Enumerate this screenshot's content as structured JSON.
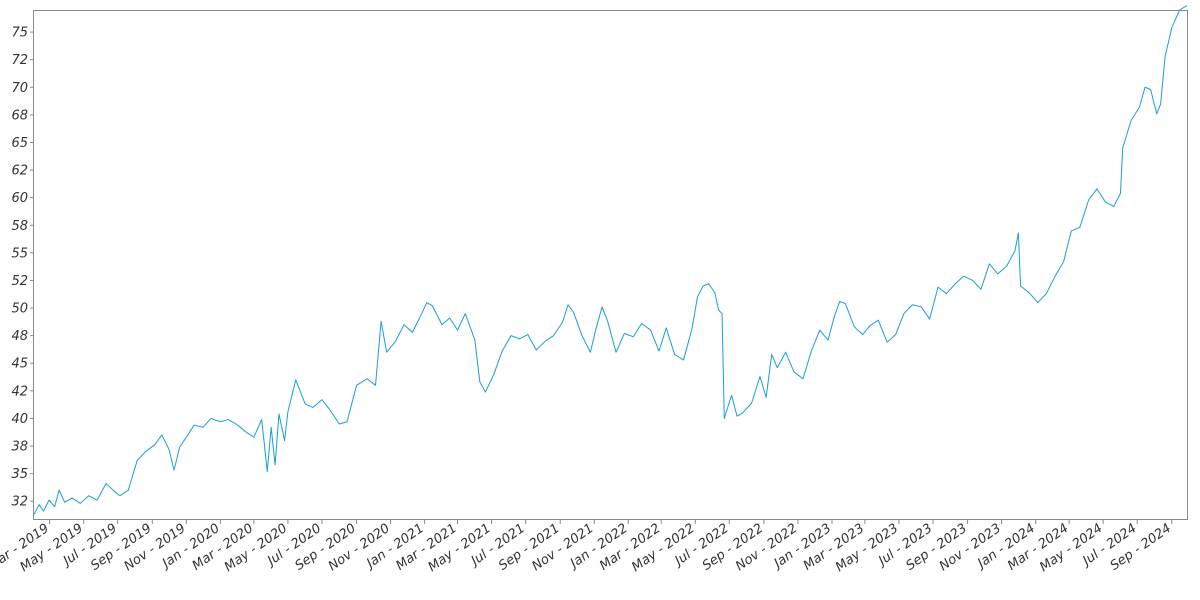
{
  "chart_data": {
    "type": "line",
    "title": "",
    "xlabel": "",
    "ylabel": "",
    "grid": false,
    "legend": "none",
    "xlim": [
      "2019-02-01",
      "2024-09-30"
    ],
    "ylim": [
      30.8,
      77.0
    ],
    "x_ticks": [
      {
        "date": "2019-03-01",
        "label": "Mar - 2019"
      },
      {
        "date": "2019-05-01",
        "label": "May - 2019"
      },
      {
        "date": "2019-07-01",
        "label": "Jul - 2019"
      },
      {
        "date": "2019-09-01",
        "label": "Sep - 2019"
      },
      {
        "date": "2019-11-01",
        "label": "Nov - 2019"
      },
      {
        "date": "2020-01-01",
        "label": "Jan - 2020"
      },
      {
        "date": "2020-03-01",
        "label": "Mar - 2020"
      },
      {
        "date": "2020-05-01",
        "label": "May - 2020"
      },
      {
        "date": "2020-07-01",
        "label": "Jul - 2020"
      },
      {
        "date": "2020-09-01",
        "label": "Sep - 2020"
      },
      {
        "date": "2020-11-01",
        "label": "Nov - 2020"
      },
      {
        "date": "2021-01-01",
        "label": "Jan - 2021"
      },
      {
        "date": "2021-03-01",
        "label": "Mar - 2021"
      },
      {
        "date": "2021-05-01",
        "label": "May - 2021"
      },
      {
        "date": "2021-07-01",
        "label": "Jul - 2021"
      },
      {
        "date": "2021-09-01",
        "label": "Sep - 2021"
      },
      {
        "date": "2021-11-01",
        "label": "Nov - 2021"
      },
      {
        "date": "2022-01-01",
        "label": "Jan - 2022"
      },
      {
        "date": "2022-03-01",
        "label": "Mar - 2022"
      },
      {
        "date": "2022-05-01",
        "label": "May - 2022"
      },
      {
        "date": "2022-07-01",
        "label": "Jul - 2022"
      },
      {
        "date": "2022-09-01",
        "label": "Sep - 2022"
      },
      {
        "date": "2022-11-01",
        "label": "Nov - 2022"
      },
      {
        "date": "2023-01-01",
        "label": "Jan - 2023"
      },
      {
        "date": "2023-03-01",
        "label": "Mar - 2023"
      },
      {
        "date": "2023-05-01",
        "label": "May - 2023"
      },
      {
        "date": "2023-07-01",
        "label": "Jul - 2023"
      },
      {
        "date": "2023-09-01",
        "label": "Sep - 2023"
      },
      {
        "date": "2023-11-01",
        "label": "Nov - 2023"
      },
      {
        "date": "2024-01-01",
        "label": "Jan - 2024"
      },
      {
        "date": "2024-03-01",
        "label": "Mar - 2024"
      },
      {
        "date": "2024-05-01",
        "label": "May - 2024"
      },
      {
        "date": "2024-07-01",
        "label": "Jul - 2024"
      },
      {
        "date": "2024-09-01",
        "label": "Sep - 2024"
      }
    ],
    "y_ticks": [
      {
        "value": 32.5,
        "label": "32"
      },
      {
        "value": 35.0,
        "label": "35"
      },
      {
        "value": 37.5,
        "label": "38"
      },
      {
        "value": 40.0,
        "label": "40"
      },
      {
        "value": 42.5,
        "label": "42"
      },
      {
        "value": 45.0,
        "label": "45"
      },
      {
        "value": 47.5,
        "label": "48"
      },
      {
        "value": 50.0,
        "label": "50"
      },
      {
        "value": 52.5,
        "label": "52"
      },
      {
        "value": 55.0,
        "label": "55"
      },
      {
        "value": 57.5,
        "label": "58"
      },
      {
        "value": 60.0,
        "label": "60"
      },
      {
        "value": 62.5,
        "label": "62"
      },
      {
        "value": 65.0,
        "label": "65"
      },
      {
        "value": 67.5,
        "label": "68"
      },
      {
        "value": 70.0,
        "label": "70"
      },
      {
        "value": 72.5,
        "label": "72"
      },
      {
        "value": 75.0,
        "label": "75"
      }
    ],
    "series": [
      {
        "color": "#1a9ed6",
        "points": [
          [
            "2019-02-01",
            31.3
          ],
          [
            "2019-02-10",
            32.2
          ],
          [
            "2019-02-18",
            31.6
          ],
          [
            "2019-02-28",
            32.6
          ],
          [
            "2019-03-10",
            32.0
          ],
          [
            "2019-03-18",
            33.5
          ],
          [
            "2019-03-28",
            32.4
          ],
          [
            "2019-04-10",
            32.8
          ],
          [
            "2019-04-25",
            32.3
          ],
          [
            "2019-05-10",
            33.0
          ],
          [
            "2019-05-25",
            32.6
          ],
          [
            "2019-06-10",
            34.1
          ],
          [
            "2019-06-25",
            33.4
          ],
          [
            "2019-07-05",
            33.0
          ],
          [
            "2019-07-20",
            33.5
          ],
          [
            "2019-08-05",
            36.2
          ],
          [
            "2019-08-20",
            37.0
          ],
          [
            "2019-09-05",
            37.6
          ],
          [
            "2019-09-18",
            38.5
          ],
          [
            "2019-10-01",
            37.2
          ],
          [
            "2019-10-10",
            35.3
          ],
          [
            "2019-10-20",
            37.4
          ],
          [
            "2019-11-01",
            38.3
          ],
          [
            "2019-11-15",
            39.4
          ],
          [
            "2019-12-01",
            39.2
          ],
          [
            "2019-12-15",
            40.0
          ],
          [
            "2020-01-01",
            39.7
          ],
          [
            "2020-01-15",
            39.9
          ],
          [
            "2020-02-01",
            39.4
          ],
          [
            "2020-02-15",
            38.8
          ],
          [
            "2020-03-01",
            38.3
          ],
          [
            "2020-03-15",
            39.9
          ],
          [
            "2020-03-25",
            35.2
          ],
          [
            "2020-04-01",
            39.2
          ],
          [
            "2020-04-08",
            35.8
          ],
          [
            "2020-04-15",
            40.4
          ],
          [
            "2020-04-25",
            38.0
          ],
          [
            "2020-05-01",
            40.6
          ],
          [
            "2020-05-15",
            43.5
          ],
          [
            "2020-06-01",
            41.3
          ],
          [
            "2020-06-15",
            41.0
          ],
          [
            "2020-07-01",
            41.7
          ],
          [
            "2020-07-15",
            40.8
          ],
          [
            "2020-08-01",
            39.5
          ],
          [
            "2020-08-15",
            39.7
          ],
          [
            "2020-09-01",
            43.0
          ],
          [
            "2020-09-20",
            43.6
          ],
          [
            "2020-10-05",
            43.0
          ],
          [
            "2020-10-15",
            48.8
          ],
          [
            "2020-10-25",
            46.0
          ],
          [
            "2020-11-10",
            47.0
          ],
          [
            "2020-11-25",
            48.5
          ],
          [
            "2020-12-10",
            47.8
          ],
          [
            "2020-12-25",
            49.3
          ],
          [
            "2021-01-05",
            50.5
          ],
          [
            "2021-01-15",
            50.2
          ],
          [
            "2021-02-01",
            48.5
          ],
          [
            "2021-02-15",
            49.1
          ],
          [
            "2021-03-01",
            48.0
          ],
          [
            "2021-03-15",
            49.5
          ],
          [
            "2021-04-01",
            47.1
          ],
          [
            "2021-04-10",
            43.3
          ],
          [
            "2021-04-20",
            42.4
          ],
          [
            "2021-05-05",
            44.0
          ],
          [
            "2021-05-20",
            46.1
          ],
          [
            "2021-06-05",
            47.5
          ],
          [
            "2021-06-20",
            47.2
          ],
          [
            "2021-07-05",
            47.6
          ],
          [
            "2021-07-20",
            46.2
          ],
          [
            "2021-08-05",
            47.0
          ],
          [
            "2021-08-20",
            47.5
          ],
          [
            "2021-09-05",
            48.7
          ],
          [
            "2021-09-15",
            50.3
          ],
          [
            "2021-09-25",
            49.6
          ],
          [
            "2021-10-10",
            47.5
          ],
          [
            "2021-10-25",
            46.0
          ],
          [
            "2021-11-05",
            48.3
          ],
          [
            "2021-11-15",
            50.1
          ],
          [
            "2021-11-25",
            48.8
          ],
          [
            "2021-12-10",
            46.0
          ],
          [
            "2021-12-25",
            47.7
          ],
          [
            "2022-01-10",
            47.4
          ],
          [
            "2022-01-25",
            48.6
          ],
          [
            "2022-02-10",
            48.0
          ],
          [
            "2022-02-25",
            46.1
          ],
          [
            "2022-03-10",
            48.2
          ],
          [
            "2022-03-25",
            45.8
          ],
          [
            "2022-04-10",
            45.3
          ],
          [
            "2022-04-25",
            48.1
          ],
          [
            "2022-05-05",
            51.0
          ],
          [
            "2022-05-15",
            52.0
          ],
          [
            "2022-05-25",
            52.2
          ],
          [
            "2022-06-05",
            51.4
          ],
          [
            "2022-06-12",
            49.8
          ],
          [
            "2022-06-18",
            49.5
          ],
          [
            "2022-06-22",
            40.0
          ],
          [
            "2022-07-05",
            42.1
          ],
          [
            "2022-07-15",
            40.2
          ],
          [
            "2022-07-25",
            40.5
          ],
          [
            "2022-08-10",
            41.4
          ],
          [
            "2022-08-25",
            43.8
          ],
          [
            "2022-09-05",
            41.9
          ],
          [
            "2022-09-15",
            45.8
          ],
          [
            "2022-09-25",
            44.6
          ],
          [
            "2022-10-10",
            46.0
          ],
          [
            "2022-10-25",
            44.2
          ],
          [
            "2022-11-10",
            43.6
          ],
          [
            "2022-11-25",
            46.1
          ],
          [
            "2022-12-10",
            48.0
          ],
          [
            "2022-12-25",
            47.1
          ],
          [
            "2023-01-05",
            49.2
          ],
          [
            "2023-01-15",
            50.6
          ],
          [
            "2023-01-25",
            50.4
          ],
          [
            "2023-02-10",
            48.3
          ],
          [
            "2023-02-25",
            47.6
          ],
          [
            "2023-03-10",
            48.4
          ],
          [
            "2023-03-25",
            48.9
          ],
          [
            "2023-04-10",
            46.9
          ],
          [
            "2023-04-25",
            47.6
          ],
          [
            "2023-05-10",
            49.5
          ],
          [
            "2023-05-25",
            50.3
          ],
          [
            "2023-06-10",
            50.1
          ],
          [
            "2023-06-25",
            49.0
          ],
          [
            "2023-07-10",
            51.9
          ],
          [
            "2023-07-25",
            51.3
          ],
          [
            "2023-08-10",
            52.2
          ],
          [
            "2023-08-25",
            52.9
          ],
          [
            "2023-09-10",
            52.5
          ],
          [
            "2023-09-25",
            51.7
          ],
          [
            "2023-10-10",
            54.0
          ],
          [
            "2023-10-25",
            53.1
          ],
          [
            "2023-11-10",
            53.8
          ],
          [
            "2023-11-25",
            55.2
          ],
          [
            "2023-12-01",
            56.8
          ],
          [
            "2023-12-05",
            52.0
          ],
          [
            "2023-12-20",
            51.4
          ],
          [
            "2024-01-05",
            50.5
          ],
          [
            "2024-01-20",
            51.3
          ],
          [
            "2024-02-05",
            52.9
          ],
          [
            "2024-02-20",
            54.2
          ],
          [
            "2024-03-05",
            57.0
          ],
          [
            "2024-03-20",
            57.3
          ],
          [
            "2024-04-05",
            59.8
          ],
          [
            "2024-04-20",
            60.8
          ],
          [
            "2024-05-05",
            59.6
          ],
          [
            "2024-05-20",
            59.2
          ],
          [
            "2024-06-01",
            60.4
          ],
          [
            "2024-06-05",
            64.5
          ],
          [
            "2024-06-20",
            67.0
          ],
          [
            "2024-07-05",
            68.2
          ],
          [
            "2024-07-15",
            70.0
          ],
          [
            "2024-07-25",
            69.8
          ],
          [
            "2024-08-05",
            67.6
          ],
          [
            "2024-08-12",
            68.5
          ],
          [
            "2024-08-20",
            72.8
          ],
          [
            "2024-09-01",
            75.4
          ],
          [
            "2024-09-15",
            77.0
          ],
          [
            "2024-09-28",
            77.4
          ]
        ]
      }
    ]
  }
}
